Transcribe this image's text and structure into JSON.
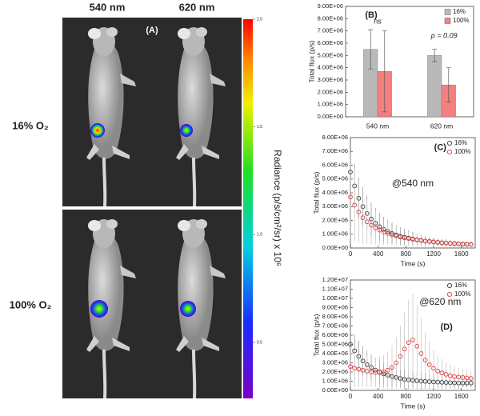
{
  "panel_a": {
    "label": "(A)",
    "columns": [
      "540 nm",
      "620 nm"
    ],
    "rows": [
      "16% O₂",
      "100% O₂"
    ],
    "colorbar": {
      "title": "Radiance (p/s/cm²/sr) x 10⁶",
      "clim": [
        0.24,
        2.0
      ],
      "ticks": [
        0.5,
        {
          "value": 1.0,
          "label": "1.0"
        },
        1.5,
        {
          "value": 2.0,
          "label": "2.0"
        }
      ]
    }
  },
  "chart_data": [
    {
      "type": "bar",
      "panel_label": "(B)",
      "y_label": "Total flux (p/s)",
      "categories": [
        "540 nm",
        "620 nm"
      ],
      "series": [
        {
          "name": "16%",
          "color": "#b9b9b9",
          "values": [
            5500000,
            5000000
          ],
          "errors": [
            1600000,
            500000
          ]
        },
        {
          "name": "100%",
          "color": "#f47f7f",
          "values": [
            3700000,
            2600000
          ],
          "errors": [
            3300000,
            1400000
          ]
        }
      ],
      "annotations": [
        "ns",
        "p = 0.09"
      ],
      "ylim": [
        0,
        9000000
      ],
      "yticks": [
        {
          "value": 0,
          "label": "0.00E+00"
        },
        {
          "value": 1000000,
          "label": "1.00E+06"
        },
        {
          "value": 2000000,
          "label": "2.00E+06"
        },
        {
          "value": 3000000,
          "label": "3.00E+06"
        },
        {
          "value": 4000000,
          "label": "4.00E+06"
        },
        {
          "value": 5000000,
          "label": "5.00E+06"
        },
        {
          "value": 6000000,
          "label": "6.00E+06"
        },
        {
          "value": 7000000,
          "label": "7.00E+06"
        },
        {
          "value": 8000000,
          "label": "8.00E+06"
        },
        {
          "value": 9000000,
          "label": "9.00E+06"
        }
      ],
      "legend": "upper right"
    },
    {
      "type": "scatter",
      "panel_label": "(C)",
      "x_label": "Time (s)",
      "y_label": "Total flux (p/s)",
      "annotations": [
        "@540 nm"
      ],
      "x": [
        0,
        60,
        120,
        180,
        240,
        300,
        360,
        420,
        480,
        540,
        600,
        660,
        720,
        780,
        840,
        900,
        960,
        1020,
        1080,
        1140,
        1200,
        1260,
        1320,
        1380,
        1440,
        1500,
        1560,
        1620,
        1680,
        1740
      ],
      "series": [
        {
          "name": "16%",
          "color": "#333333",
          "values": [
            5500000,
            4500000,
            3600000,
            3000000,
            2500000,
            2100000,
            1800000,
            1550000,
            1350000,
            1200000,
            1050000,
            950000,
            850000,
            780000,
            720000,
            660000,
            600000,
            550000,
            500000,
            470000,
            440000,
            410000,
            380000,
            360000,
            340000,
            320000,
            300000,
            280000,
            270000,
            260000
          ],
          "errors": [
            1800000,
            1600000,
            1500000,
            1400000,
            1300000,
            1200000,
            1100000,
            1000000,
            900000,
            850000,
            800000,
            700000,
            650000,
            600000,
            550000,
            500000,
            450000,
            400000,
            380000,
            350000,
            320000,
            300000,
            280000,
            260000,
            240000,
            220000,
            200000,
            190000,
            180000,
            170000
          ]
        },
        {
          "name": "100%",
          "color": "#e03a3a",
          "values": [
            3700000,
            3100000,
            2600000,
            2200000,
            1900000,
            1650000,
            1450000,
            1300000,
            1150000,
            1050000,
            950000,
            870000,
            800000,
            740000,
            680000,
            630000,
            580000,
            540000,
            500000,
            470000,
            440000,
            410000,
            380000,
            360000,
            340000,
            320000,
            300000,
            280000,
            270000,
            260000
          ],
          "errors": [
            3200000,
            2600000,
            2200000,
            1900000,
            1600000,
            1400000,
            1200000,
            1050000,
            950000,
            850000,
            750000,
            680000,
            600000,
            550000,
            500000,
            450000,
            400000,
            380000,
            350000,
            320000,
            300000,
            280000,
            260000,
            240000,
            220000,
            200000,
            190000,
            180000,
            170000,
            160000
          ]
        }
      ],
      "xlim": [
        0,
        1800
      ],
      "xticks": [
        0,
        400,
        800,
        1200,
        1600
      ],
      "ylim": [
        0,
        8000000
      ],
      "yticks": [
        {
          "value": 0,
          "label": "0.00E+00"
        },
        {
          "value": 1000000,
          "label": "1.00E+06"
        },
        {
          "value": 2000000,
          "label": "2.00E+06"
        },
        {
          "value": 3000000,
          "label": "3.00E+06"
        },
        {
          "value": 4000000,
          "label": "4.00E+06"
        },
        {
          "value": 5000000,
          "label": "5.00E+06"
        },
        {
          "value": 6000000,
          "label": "6.00E+06"
        },
        {
          "value": 7000000,
          "label": "7.00E+06"
        },
        {
          "value": 8000000,
          "label": "8.00E+06"
        }
      ],
      "legend": "upper right"
    },
    {
      "type": "scatter",
      "panel_label": "(D)",
      "x_label": "Time (s)",
      "y_label": "Total flux (p/s)",
      "annotations": [
        "@620 nm"
      ],
      "x": [
        0,
        60,
        120,
        180,
        240,
        300,
        360,
        420,
        480,
        540,
        600,
        660,
        720,
        780,
        840,
        900,
        960,
        1020,
        1080,
        1140,
        1200,
        1260,
        1320,
        1380,
        1440,
        1500,
        1560,
        1620,
        1680,
        1740
      ],
      "series": [
        {
          "name": "16%",
          "color": "#333333",
          "values": [
            5000000,
            4300000,
            3700000,
            3200000,
            2800000,
            2500000,
            2200000,
            2000000,
            1800000,
            1650000,
            1500000,
            1400000,
            1300000,
            1200000,
            1150000,
            1100000,
            1050000,
            1000000,
            980000,
            950000,
            920000,
            900000,
            880000,
            860000,
            840000,
            820000,
            800000,
            800000,
            800000,
            800000
          ],
          "errors": [
            2000000,
            1800000,
            1700000,
            1600000,
            1500000,
            1400000,
            1300000,
            1300000,
            1200000,
            1200000,
            1100000,
            1100000,
            1000000,
            1000000,
            1000000,
            900000,
            900000,
            900000,
            800000,
            800000,
            800000,
            700000,
            700000,
            700000,
            600000,
            600000,
            600000,
            500000,
            500000,
            500000
          ]
        },
        {
          "name": "100%",
          "color": "#e03a3a",
          "values": [
            2600000,
            2400000,
            2300000,
            2200000,
            2100000,
            2000000,
            1950000,
            1950000,
            2000000,
            2200000,
            2500000,
            3000000,
            3700000,
            4500000,
            5200000,
            5500000,
            4800000,
            4000000,
            3300000,
            2800000,
            2400000,
            2100000,
            1900000,
            1750000,
            1600000,
            1500000,
            1450000,
            1400000,
            1350000,
            1300000
          ],
          "errors": [
            2200000,
            2000000,
            1900000,
            1800000,
            1700000,
            1600000,
            1600000,
            1700000,
            1800000,
            2000000,
            2400000,
            2800000,
            3300000,
            4000000,
            4600000,
            5000000,
            4500000,
            3800000,
            3000000,
            2500000,
            2000000,
            1700000,
            1500000,
            1300000,
            1200000,
            1100000,
            1000000,
            900000,
            900000,
            800000
          ]
        }
      ],
      "xlim": [
        0,
        1800
      ],
      "xticks": [
        0,
        400,
        800,
        1200,
        1600
      ],
      "ylim": [
        0,
        12000000
      ],
      "yticks": [
        {
          "value": 0,
          "label": "0.00E+00"
        },
        {
          "value": 1000000,
          "label": "1.00E+06"
        },
        {
          "value": 2000000,
          "label": "2.00E+06"
        },
        {
          "value": 3000000,
          "label": "3.00E+06"
        },
        {
          "value": 4000000,
          "label": "4.00E+06"
        },
        {
          "value": 5000000,
          "label": "5.00E+06"
        },
        {
          "value": 6000000,
          "label": "6.00E+06"
        },
        {
          "value": 7000000,
          "label": "7.00E+06"
        },
        {
          "value": 8000000,
          "label": "8.00E+06"
        },
        {
          "value": 9000000,
          "label": "9.00E+06"
        },
        {
          "value": 10000000,
          "label": "1.00E+07"
        },
        {
          "value": 11000000,
          "label": "1.10E+07"
        },
        {
          "value": 12000000,
          "label": "1.20E+07"
        }
      ],
      "legend": "upper right"
    }
  ]
}
